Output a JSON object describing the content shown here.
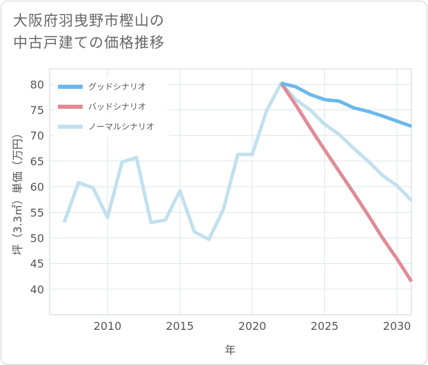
{
  "title_line1": "大阪府羽曳野市樫山の",
  "title_line2": "中古戸建ての価格推移",
  "chart_data": {
    "type": "line",
    "title": "大阪府羽曳野市樫山の中古戸建ての価格推移",
    "xlabel": "年",
    "ylabel": "坪（3.3㎡）単価（万円）",
    "xlim": [
      2006,
      2031
    ],
    "ylim": [
      35,
      83
    ],
    "x_ticks": [
      2010,
      2015,
      2020,
      2025,
      2030
    ],
    "y_ticks": [
      40,
      45,
      50,
      55,
      60,
      65,
      70,
      75,
      80
    ],
    "x_tick_labels": [
      "2010",
      "2015",
      "2020",
      "2025",
      "2030"
    ],
    "y_tick_labels": [
      "40",
      "45",
      "50",
      "55",
      "60",
      "65",
      "70",
      "75",
      "80"
    ],
    "grid": true,
    "legend_position": "top-left",
    "series": [
      {
        "name": "グッドシナリオ",
        "color": "#6ab8ec",
        "x": [
          2022,
          2023,
          2024,
          2025,
          2026,
          2027,
          2028,
          2029,
          2030,
          2031
        ],
        "values": [
          80.2,
          79.5,
          78.0,
          77.0,
          76.7,
          75.4,
          74.7,
          73.8,
          72.8,
          71.8
        ]
      },
      {
        "name": "バッドシナリオ",
        "color": "#e08b96",
        "x": [
          2022,
          2023,
          2024,
          2025,
          2026,
          2027,
          2028,
          2029,
          2030,
          2031
        ],
        "values": [
          80.2,
          76.0,
          71.5,
          67.2,
          63.0,
          58.8,
          54.5,
          50.0,
          45.9,
          41.5
        ]
      },
      {
        "name": "ノーマルシナリオ",
        "color": "#c2e0ee",
        "x": [
          2007,
          2008,
          2009,
          2010,
          2011,
          2012,
          2013,
          2014,
          2015,
          2016,
          2017,
          2018,
          2019,
          2020,
          2021,
          2022,
          2023,
          2024,
          2025,
          2026,
          2027,
          2028,
          2029,
          2030,
          2031
        ],
        "values": [
          53.0,
          60.8,
          59.8,
          54.0,
          64.8,
          65.7,
          53.0,
          53.5,
          59.2,
          51.2,
          49.7,
          55.5,
          66.3,
          66.3,
          74.9,
          80.2,
          77.0,
          75.0,
          72.2,
          70.2,
          67.5,
          65.0,
          62.2,
          60.2,
          57.3
        ]
      }
    ]
  }
}
